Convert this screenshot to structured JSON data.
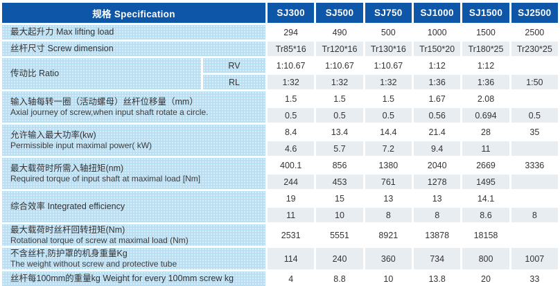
{
  "table": {
    "colors": {
      "header_bg": "#0e56a8",
      "header_text": "#ffffff",
      "label_bg": "#badef2",
      "row_bg": "#ffffff",
      "row_alt_bg": "#e8edf2",
      "text": "#333333"
    },
    "header": {
      "spec_label": "规格  Specification",
      "columns": [
        "SJ300",
        "SJ500",
        "SJ750",
        "SJ1000",
        "SJ1500",
        "SJ2500"
      ]
    },
    "rows": [
      {
        "id": "max-lifting-load",
        "label_zh": "最大起升力",
        "label_en": "Max lifting load",
        "inline": true,
        "values": [
          "294",
          "490",
          "500",
          "1000",
          "1500",
          "2500"
        ]
      },
      {
        "id": "screw-dimension",
        "label_zh": "丝杆尺寸",
        "label_en": "Screw dimension",
        "inline": true,
        "values": [
          "Tr85*16",
          "Tr120*16",
          "Tr130*16",
          "Tr150*20",
          "Tr180*25",
          "Tr230*25"
        ]
      },
      {
        "id": "ratio",
        "label_zh": "传动比",
        "label_en": "Ratio",
        "inline": true,
        "sub_rows": [
          {
            "key": "RV",
            "values": [
              "1:10.67",
              "1:10.67",
              "1:10.67",
              "1:12",
              "1:12",
              ""
            ]
          },
          {
            "key": "RL",
            "values": [
              "1:32",
              "1:32",
              "1:32",
              "1:36",
              "1:36",
              "1:50"
            ]
          }
        ]
      },
      {
        "id": "axial-journey",
        "label_zh": "输入轴每转一圈（活动螺母）丝杆位移量（mm）",
        "label_en": "Axial journey of screw,when input shaft rotate a circle.",
        "inline": false,
        "sub_rows": [
          {
            "values": [
              "1.5",
              "1.5",
              "1.5",
              "1.67",
              "2.08",
              ""
            ]
          },
          {
            "values": [
              "0.5",
              "0.5",
              "0.5",
              "0.56",
              "0.694",
              "0.5"
            ]
          }
        ]
      },
      {
        "id": "permissible-input-power",
        "label_zh": "允许输入最大功率(kw)",
        "label_en": "Permissible input maximal power( kW)",
        "inline": false,
        "sub_rows": [
          {
            "values": [
              "8.4",
              "13.4",
              "14.4",
              "21.4",
              "28",
              "35"
            ]
          },
          {
            "values": [
              "4.6",
              "5.7",
              "7.2",
              "9.4",
              "11",
              ""
            ]
          }
        ]
      },
      {
        "id": "required-input-torque",
        "label_zh": "最大载荷时所需入轴扭矩(nm)",
        "label_en": "Required torque of input shaft at maximal load [Nm]",
        "inline": false,
        "sub_rows": [
          {
            "values": [
              "400.1",
              "856",
              "1380",
              "2040",
              "2669",
              "3336"
            ]
          },
          {
            "values": [
              "244",
              "453",
              "761",
              "1278",
              "1495",
              ""
            ]
          }
        ]
      },
      {
        "id": "integrated-efficiency",
        "label_zh": "综合效率",
        "label_en": "Integrated efficiency",
        "inline": true,
        "sub_rows": [
          {
            "values": [
              "19",
              "15",
              "13",
              "13",
              "14.1",
              ""
            ]
          },
          {
            "values": [
              "11",
              "10",
              "8",
              "8",
              "8.6",
              "8"
            ]
          }
        ]
      },
      {
        "id": "rotational-torque-screw",
        "label_zh": "最大载荷时丝杆回转扭矩(Nm)",
        "label_en": "Rotational torque of screw at maximal load  (Nm)",
        "inline": false,
        "values": [
          "2531",
          "5551",
          "8921",
          "13878",
          "18158",
          ""
        ]
      },
      {
        "id": "weight-without-screw",
        "label_zh": "不含丝杆,防护罩的机身重量Kg",
        "label_en": "The weight without screw and protective tube",
        "inline": false,
        "values": [
          "114",
          "240",
          "360",
          "734",
          "800",
          "1007"
        ]
      },
      {
        "id": "weight-per-100mm-screw",
        "label_zh": "丝杆每100mm的重量kg",
        "label_en": "Weight for every 100mm screw kg",
        "inline": true,
        "values": [
          "4",
          "8.8",
          "10",
          "13.8",
          "20",
          "33"
        ]
      }
    ]
  }
}
